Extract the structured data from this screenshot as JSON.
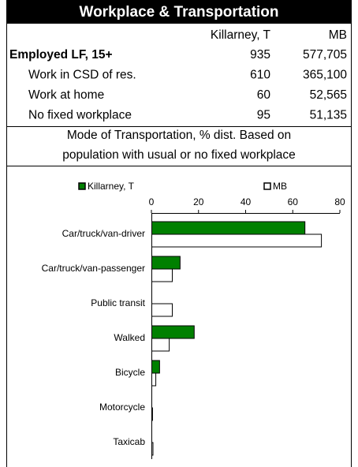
{
  "title": "Workplace & Transportation",
  "table": {
    "columns": [
      "Killarney, T",
      "MB"
    ],
    "rows": [
      {
        "label": "Employed LF, 15+",
        "values": [
          "935",
          "577,705"
        ]
      },
      {
        "label": "Work in CSD of res.",
        "values": [
          "610",
          "365,100"
        ]
      },
      {
        "label": "Work at home",
        "values": [
          "60",
          "52,565"
        ]
      },
      {
        "label": "No fixed workplace",
        "values": [
          "95",
          "51,135"
        ]
      }
    ]
  },
  "caption": [
    "Mode of Transportation, % dist. Based on",
    "population with usual or no fixed workplace"
  ],
  "chart_data": {
    "type": "hbar",
    "categories": [
      "Car/truck/van-driver",
      "Car/truck/van-passenger",
      "Public transit",
      "Walked",
      "Bicycle",
      "Motorcycle",
      "Taxicab"
    ],
    "series": [
      {
        "name": "Killarney, T",
        "color": "#008000",
        "values": [
          65,
          12,
          0,
          18,
          3.3,
          0,
          0
        ]
      },
      {
        "name": "MB",
        "color": "#ffffff",
        "values": [
          72,
          8.7,
          8.7,
          7.4,
          1.7,
          0.3,
          0.5
        ]
      }
    ],
    "xlim": [
      0,
      80
    ],
    "xticks": [
      0,
      20,
      40,
      60,
      80
    ],
    "legend": "top"
  }
}
